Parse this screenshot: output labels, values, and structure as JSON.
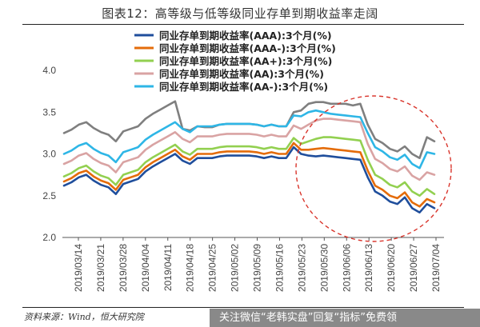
{
  "title": "图表12：高等级与低等级同业存单到期收益率走阔",
  "source": "资料来源：Wind，恒大研究院",
  "watermark": "关注微信“老韩实盘”回复“指标”免费领",
  "chart_data": {
    "type": "line",
    "ylim": [
      2.0,
      4.0
    ],
    "yticks": [
      "2.0",
      "2.5",
      "3.0",
      "3.5",
      "4.0"
    ],
    "xticks": [
      "2019/03/14",
      "2019/03/21",
      "2019/03/28",
      "2019/04/04",
      "2019/04/11",
      "2019/04/18",
      "2019/04/25",
      "2019/05/02",
      "2019/05/09",
      "2019/05/16",
      "2019/05/23",
      "2019/05/30",
      "2019/06/06",
      "2019/06/13",
      "2019/06/20",
      "2019/06/27",
      "2019/07/04"
    ],
    "legend_position": "top-left",
    "highlight_circle": true,
    "series": [
      {
        "name": "同业存单到期收益率(AAA):3个月(%)",
        "color": "#1f4e9c",
        "values": [
          2.62,
          2.66,
          2.72,
          2.75,
          2.68,
          2.63,
          2.6,
          2.52,
          2.64,
          2.67,
          2.7,
          2.79,
          2.85,
          2.9,
          2.95,
          3.0,
          2.92,
          2.88,
          2.95,
          2.95,
          2.95,
          2.97,
          2.98,
          2.98,
          2.98,
          2.98,
          2.97,
          2.95,
          2.97,
          2.95,
          2.95,
          3.08,
          3.0,
          2.98,
          2.97,
          2.98,
          2.97,
          2.96,
          2.95,
          2.94,
          2.93,
          2.72,
          2.55,
          2.5,
          2.43,
          2.4,
          2.48,
          2.35,
          2.3,
          2.4,
          2.35
        ]
      },
      {
        "name": "同业存单到期收益率(AAA-):3个月(%)",
        "color": "#e46c0a",
        "values": [
          2.67,
          2.71,
          2.77,
          2.8,
          2.73,
          2.68,
          2.65,
          2.57,
          2.69,
          2.72,
          2.75,
          2.84,
          2.9,
          2.95,
          3.0,
          3.05,
          2.97,
          2.93,
          3.0,
          3.0,
          3.0,
          3.02,
          3.03,
          3.03,
          3.03,
          3.03,
          3.02,
          3.0,
          3.02,
          3.0,
          3.0,
          3.13,
          3.05,
          3.05,
          3.06,
          3.07,
          3.06,
          3.05,
          3.04,
          3.03,
          3.02,
          2.8,
          2.62,
          2.57,
          2.5,
          2.47,
          2.54,
          2.42,
          2.37,
          2.46,
          2.42
        ]
      },
      {
        "name": "同业存单到期收益率(AA+):3个月(%)",
        "color": "#92d050",
        "values": [
          2.73,
          2.77,
          2.83,
          2.86,
          2.79,
          2.74,
          2.71,
          2.63,
          2.75,
          2.78,
          2.81,
          2.9,
          2.96,
          3.01,
          3.06,
          3.11,
          3.03,
          2.99,
          3.06,
          3.06,
          3.06,
          3.08,
          3.09,
          3.09,
          3.09,
          3.09,
          3.08,
          3.06,
          3.08,
          3.06,
          3.06,
          3.19,
          3.12,
          3.15,
          3.18,
          3.2,
          3.2,
          3.19,
          3.18,
          3.17,
          3.16,
          2.93,
          2.75,
          2.7,
          2.63,
          2.6,
          2.66,
          2.55,
          2.5,
          2.58,
          2.52
        ]
      },
      {
        "name": "同业存单到期收益率(AA):3个月(%)",
        "color": "#d9a3a3",
        "values": [
          2.88,
          2.92,
          2.98,
          3.01,
          2.94,
          2.89,
          2.86,
          2.78,
          2.9,
          2.93,
          2.96,
          3.05,
          3.11,
          3.16,
          3.21,
          3.26,
          3.18,
          3.14,
          3.21,
          3.21,
          3.21,
          3.23,
          3.24,
          3.24,
          3.24,
          3.24,
          3.23,
          3.21,
          3.23,
          3.21,
          3.21,
          3.34,
          3.3,
          3.35,
          3.4,
          3.42,
          3.42,
          3.41,
          3.4,
          3.39,
          3.38,
          3.12,
          2.94,
          2.89,
          2.82,
          2.79,
          2.85,
          2.74,
          2.69,
          2.78,
          2.75
        ]
      },
      {
        "name": "同业存单到期收益率(AA-):3个月(%)",
        "color": "#2eb6e6",
        "values": [
          3.0,
          3.04,
          3.1,
          3.13,
          3.06,
          3.01,
          2.98,
          2.9,
          3.02,
          3.05,
          3.08,
          3.17,
          3.23,
          3.28,
          3.33,
          3.38,
          3.3,
          3.26,
          3.33,
          3.33,
          3.33,
          3.35,
          3.36,
          3.36,
          3.36,
          3.36,
          3.35,
          3.33,
          3.35,
          3.33,
          3.33,
          3.46,
          3.45,
          3.5,
          3.52,
          3.5,
          3.48,
          3.47,
          3.46,
          3.45,
          3.44,
          3.25,
          3.08,
          3.03,
          2.96,
          2.93,
          2.99,
          2.88,
          2.83,
          3.02,
          3.0
        ]
      },
      {
        "name": "",
        "color": "#7f7f7f",
        "values": [
          3.25,
          3.29,
          3.35,
          3.38,
          3.31,
          3.26,
          3.23,
          3.15,
          3.27,
          3.3,
          3.33,
          3.42,
          3.48,
          3.53,
          3.58,
          3.63,
          3.3,
          3.28,
          3.33,
          3.32,
          3.32,
          3.35,
          3.36,
          3.36,
          3.36,
          3.36,
          3.35,
          3.33,
          3.35,
          3.33,
          3.33,
          3.5,
          3.52,
          3.6,
          3.62,
          3.62,
          3.6,
          3.6,
          3.6,
          3.58,
          3.6,
          3.35,
          3.18,
          3.13,
          3.06,
          3.03,
          3.09,
          3.0,
          2.95,
          3.2,
          3.15
        ]
      }
    ]
  }
}
